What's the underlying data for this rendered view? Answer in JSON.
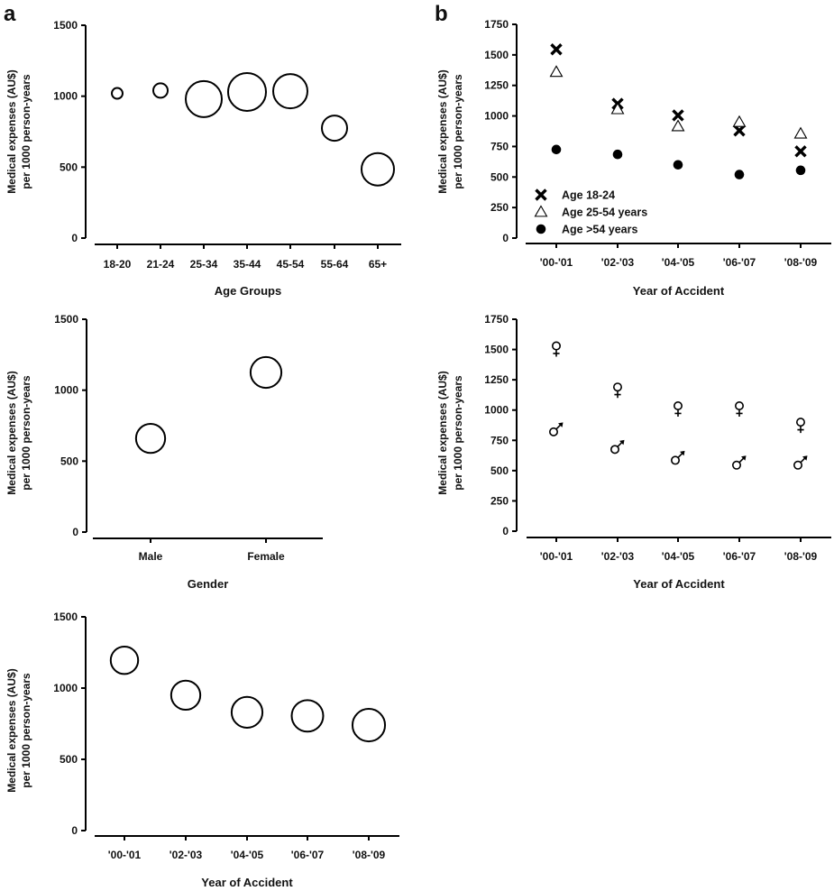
{
  "panel_labels": {
    "a": "a",
    "b": "b"
  },
  "chart_data": [
    {
      "id": "a1",
      "type": "scatter",
      "marker": "open-circle-bubble",
      "title": "",
      "xlabel": "Age Groups",
      "ylabel_line1": "Medical expenses (AU$)",
      "ylabel_line2": "per 1000 person-years",
      "ylim": [
        0,
        1500
      ],
      "yticks": [
        0,
        500,
        1000,
        1500
      ],
      "categories": [
        "18-20",
        "21-24",
        "25-34",
        "35-44",
        "45-54",
        "55-64",
        "65+"
      ],
      "values": [
        1020,
        1040,
        980,
        1030,
        1035,
        775,
        485
      ],
      "relative_size": [
        0.3,
        0.4,
        1.0,
        1.05,
        0.95,
        0.7,
        0.9
      ]
    },
    {
      "id": "b1",
      "type": "scatter",
      "title": "",
      "xlabel": "Year of Accident",
      "ylabel_line1": "Medical expenses  (AU$)",
      "ylabel_line2": "per 1000 person-years",
      "ylim": [
        0,
        1750
      ],
      "yticks": [
        0,
        250,
        500,
        750,
        1000,
        1250,
        1500,
        1750
      ],
      "categories": [
        "'00-'01",
        "'02-'03",
        "'04-'05",
        "'06-'07",
        "'08-'09"
      ],
      "legend_position": "bottom-left",
      "series": [
        {
          "name": "Age 18-24",
          "marker": "x",
          "values": [
            1545,
            1100,
            1005,
            880,
            710
          ]
        },
        {
          "name": "Age 25-54 years",
          "marker": "open-triangle",
          "values": [
            1360,
            1055,
            915,
            950,
            855
          ]
        },
        {
          "name": "Age >54 years",
          "marker": "filled-circle",
          "values": [
            725,
            685,
            600,
            520,
            555
          ]
        }
      ]
    },
    {
      "id": "a2",
      "type": "scatter",
      "marker": "open-circle-bubble",
      "title": "",
      "xlabel": "Gender",
      "ylabel_line1": "Medical expenses  (AU$)",
      "ylabel_line2": "per 1000 person-years",
      "ylim": [
        0,
        1500
      ],
      "yticks": [
        0,
        500,
        1000,
        1500
      ],
      "categories": [
        "Male",
        "Female"
      ],
      "values": [
        660,
        1125
      ],
      "relative_size": [
        0.85,
        0.9
      ]
    },
    {
      "id": "b2",
      "type": "scatter",
      "title": "",
      "xlabel": "Year of Accident",
      "ylabel_line1": "Medical expenses  (AU$)",
      "ylabel_line2": "per 1000 person-years",
      "ylim": [
        0,
        1750
      ],
      "yticks": [
        0,
        250,
        500,
        750,
        1000,
        1250,
        1500,
        1750
      ],
      "categories": [
        "'00-'01",
        "'02-'03",
        "'04-'05",
        "'06-'07",
        "'08-'09"
      ],
      "series": [
        {
          "name": "Female",
          "marker": "female-symbol",
          "values": [
            1530,
            1190,
            1035,
            1035,
            900
          ]
        },
        {
          "name": "Male",
          "marker": "male-symbol",
          "values": [
            835,
            690,
            600,
            560,
            560
          ]
        }
      ]
    },
    {
      "id": "a3",
      "type": "scatter",
      "marker": "open-circle-bubble",
      "title": "",
      "xlabel": "Year of Accident",
      "ylabel_line1": "Medical expenses  (AU$)",
      "ylabel_line2": "per 1000 person-years",
      "ylim": [
        0,
        1500
      ],
      "yticks": [
        0,
        500,
        1000,
        1500
      ],
      "categories": [
        "'00-'01",
        "'02-'03",
        "'04-'05",
        "'06-'07",
        "'08-'09"
      ],
      "values": [
        1195,
        950,
        830,
        805,
        740
      ],
      "relative_size": [
        0.8,
        0.85,
        0.9,
        0.92,
        0.95
      ]
    }
  ]
}
